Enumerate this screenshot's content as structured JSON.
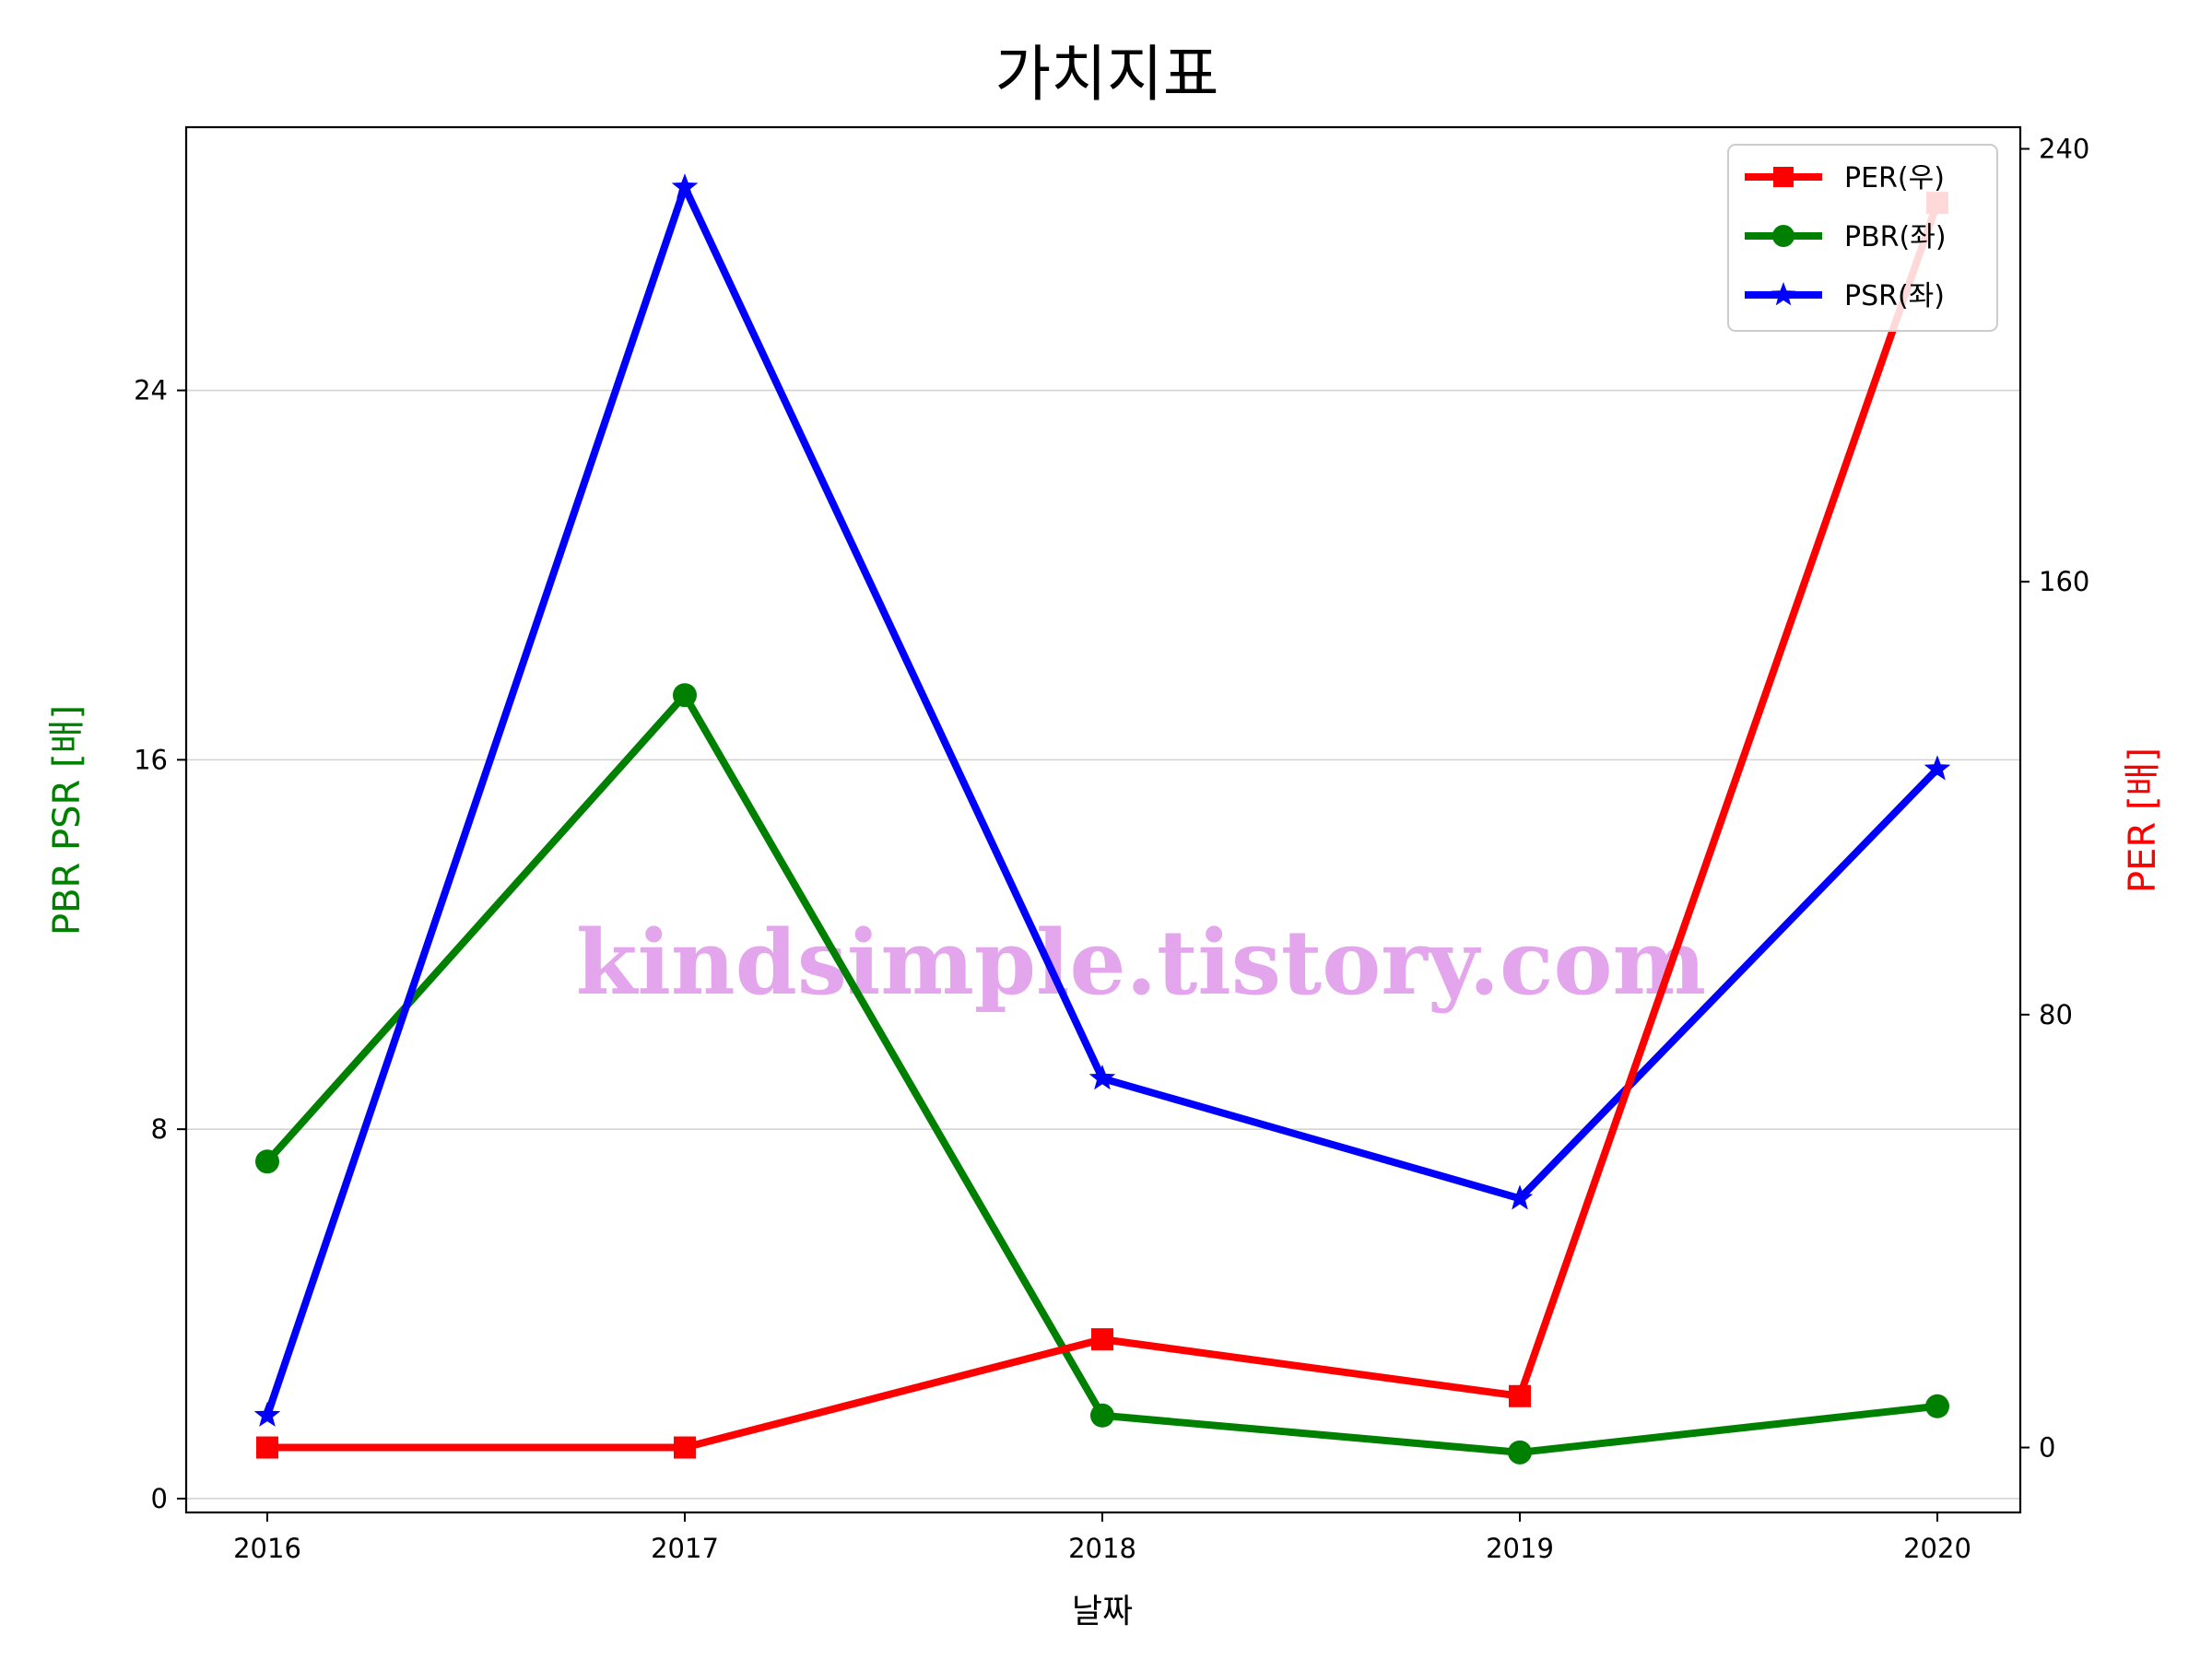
{
  "chart_data": {
    "type": "line",
    "title": "가치지표",
    "xlabel": "날짜",
    "ylabel_left": "PBR PSR [배]",
    "ylabel_right": "PER [배]",
    "categories": [
      "2016",
      "2017",
      "2018",
      "2019",
      "2020"
    ],
    "y_left": {
      "ticks": [
        "0",
        "8",
        "16",
        "24"
      ],
      "lim": [
        -0.3,
        29.7
      ]
    },
    "y_right": {
      "ticks": [
        "0",
        "80",
        "160",
        "240"
      ],
      "lim": [
        -12,
        244
      ]
    },
    "grid": "horizontal",
    "legend_position": "top-right",
    "series": [
      {
        "name": "PER(우)",
        "axis": "right",
        "color": "#ff0000",
        "marker": "square",
        "values": [
          0,
          0,
          20,
          9.5,
          230
        ]
      },
      {
        "name": "PBR(좌)",
        "axis": "left",
        "color": "#008000",
        "marker": "circle",
        "values": [
          7.3,
          17.4,
          1.8,
          1.0,
          2.0
        ]
      },
      {
        "name": "PSR(좌)",
        "axis": "left",
        "color": "#0000ff",
        "marker": "star",
        "values": [
          1.8,
          28.4,
          9.1,
          6.5,
          15.8
        ]
      }
    ],
    "watermark": "kindsimple.tistory.com"
  }
}
